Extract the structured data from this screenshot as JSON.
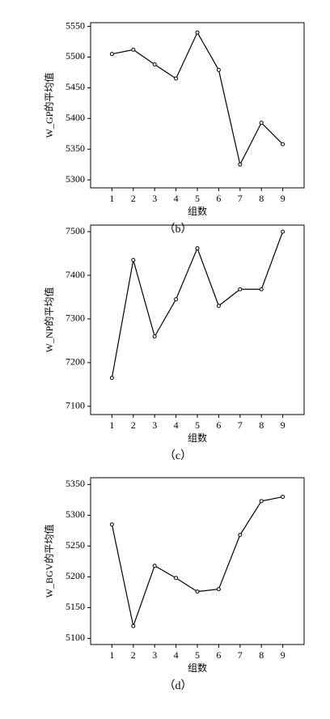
{
  "chart_data": [
    {
      "type": "line",
      "caption": "（b）",
      "xlabel": "组数",
      "ylabel": "W_GP的平均值",
      "x": [
        1,
        2,
        3,
        4,
        5,
        6,
        7,
        8,
        9
      ],
      "xlim": [
        0,
        10
      ],
      "xticks": [
        1,
        2,
        3,
        4,
        5,
        6,
        7,
        8,
        9
      ],
      "values": [
        5505,
        5512,
        5488,
        5465,
        5540,
        5479,
        5325,
        5393,
        5358
      ],
      "color": "#000000",
      "ylim": [
        5287,
        5556
      ],
      "yticks": [
        5300,
        5350,
        5400,
        5450,
        5500,
        5550
      ]
    },
    {
      "type": "line",
      "caption": "（c）",
      "xlabel": "组数",
      "ylabel": "W_NP的平均值",
      "x": [
        1,
        2,
        3,
        4,
        5,
        6,
        7,
        8,
        9
      ],
      "xlim": [
        0,
        10
      ],
      "xticks": [
        1,
        2,
        3,
        4,
        5,
        6,
        7,
        8,
        9
      ],
      "values": [
        7165,
        7435,
        7260,
        7345,
        7462,
        7330,
        7368,
        7368,
        7500
      ],
      "color": "#000000",
      "ylim": [
        7081,
        7515
      ],
      "yticks": [
        7100,
        7200,
        7300,
        7400,
        7500
      ]
    },
    {
      "type": "line",
      "caption": "（d）",
      "xlabel": "组数",
      "ylabel": "W_BGV的平均值",
      "x": [
        1,
        2,
        3,
        4,
        5,
        6,
        7,
        8,
        9
      ],
      "xlim": [
        0,
        10
      ],
      "xticks": [
        1,
        2,
        3,
        4,
        5,
        6,
        7,
        8,
        9
      ],
      "values": [
        5285,
        5120,
        5218,
        5198,
        5176,
        5180,
        5268,
        5323,
        5330
      ],
      "color": "#000000",
      "ylim": [
        5090,
        5361
      ],
      "yticks": [
        5100,
        5150,
        5200,
        5250,
        5300,
        5350
      ]
    }
  ]
}
